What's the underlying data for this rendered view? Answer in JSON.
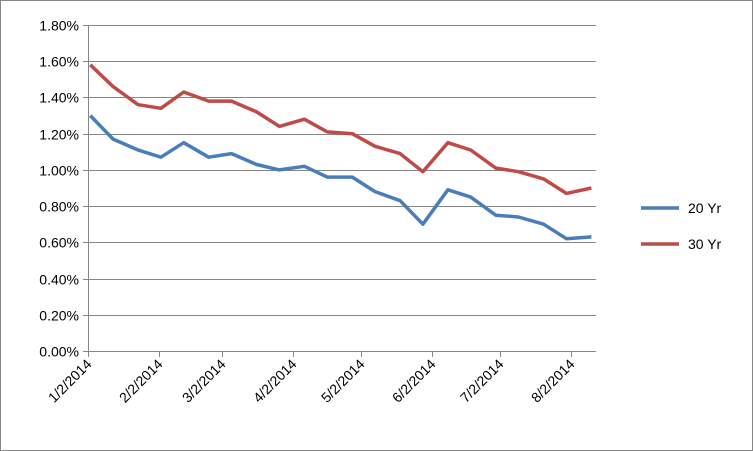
{
  "chart_data": {
    "type": "line",
    "title": "",
    "xlabel": "",
    "ylabel": "",
    "ylim": [
      0,
      0.018
    ],
    "y_ticks": [
      "0.00%",
      "0.20%",
      "0.40%",
      "0.60%",
      "0.80%",
      "1.00%",
      "1.20%",
      "1.40%",
      "1.60%",
      "1.80%"
    ],
    "x_ticks": [
      "1/2/2014",
      "2/2/2014",
      "3/2/2014",
      "4/2/2014",
      "5/2/2014",
      "6/2/2014",
      "7/2/2014",
      "8/2/2014"
    ],
    "x_range": [
      "2014-01-02",
      "2014-08-13"
    ],
    "grid": "horizontal",
    "legend_position": "right",
    "x": [
      "2014-01-03",
      "2014-01-13",
      "2014-01-24",
      "2014-02-03",
      "2014-02-13",
      "2014-02-24",
      "2014-03-06",
      "2014-03-17",
      "2014-03-27",
      "2014-04-07",
      "2014-04-17",
      "2014-04-28",
      "2014-05-08",
      "2014-05-19",
      "2014-05-29",
      "2014-06-09",
      "2014-06-19",
      "2014-06-30",
      "2014-07-10",
      "2014-07-21",
      "2014-07-31",
      "2014-08-11"
    ],
    "series": [
      {
        "name": "20 Yr",
        "color": "#4a7ebb",
        "values": [
          0.013,
          0.0117,
          0.0111,
          0.0107,
          0.0115,
          0.0107,
          0.0109,
          0.0103,
          0.01,
          0.0102,
          0.0096,
          0.0096,
          0.0088,
          0.0083,
          0.007,
          0.0089,
          0.0085,
          0.0075,
          0.0074,
          0.007,
          0.0062,
          0.0063
        ]
      },
      {
        "name": "30 Yr",
        "color": "#be4b48",
        "values": [
          0.0158,
          0.0146,
          0.0136,
          0.0134,
          0.0143,
          0.0138,
          0.0138,
          0.0132,
          0.0124,
          0.0128,
          0.0121,
          0.012,
          0.0113,
          0.0109,
          0.0099,
          0.0115,
          0.0111,
          0.0101,
          0.0099,
          0.0095,
          0.0087,
          0.009
        ]
      }
    ]
  }
}
